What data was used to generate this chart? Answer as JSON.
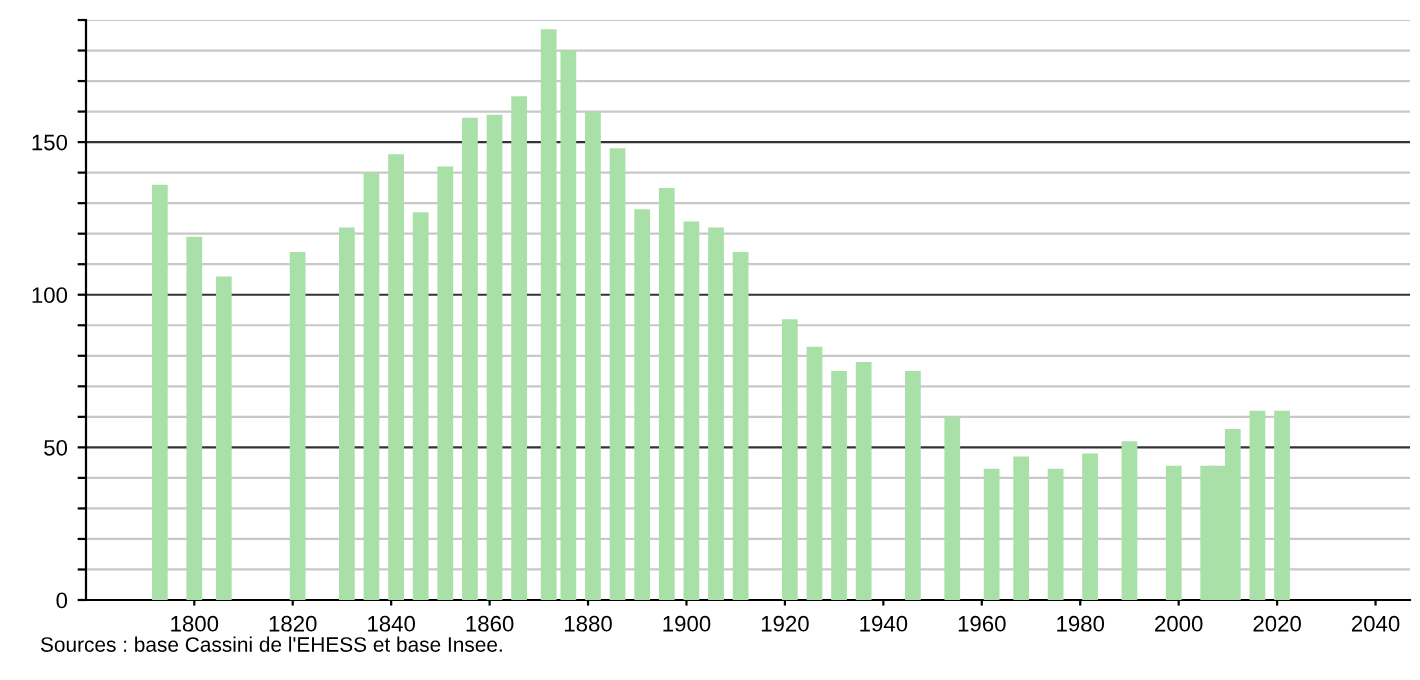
{
  "chart_data": {
    "type": "bar",
    "color": "#a8e0a8",
    "x": [
      1793,
      1800,
      1806,
      1821,
      1831,
      1836,
      1841,
      1846,
      1851,
      1856,
      1861,
      1866,
      1872,
      1876,
      1881,
      1886,
      1891,
      1896,
      1901,
      1906,
      1911,
      1921,
      1926,
      1931,
      1936,
      1946,
      1954,
      1962,
      1968,
      1975,
      1982,
      1990,
      1999,
      2006,
      2008,
      2011,
      2016,
      2021
    ],
    "values": [
      136,
      119,
      106,
      114,
      122,
      140,
      146,
      127,
      142,
      158,
      159,
      165,
      187,
      180,
      160,
      148,
      128,
      135,
      124,
      122,
      114,
      92,
      83,
      75,
      78,
      75,
      60,
      43,
      47,
      43,
      48,
      52,
      44,
      44,
      44,
      56,
      62,
      62
    ],
    "xlim": [
      1778,
      2047
    ],
    "xticks": [
      1800,
      1820,
      1840,
      1860,
      1880,
      1900,
      1920,
      1940,
      1960,
      1980,
      2000,
      2020,
      2040
    ],
    "ylim": [
      0,
      190
    ],
    "yticks": [
      0,
      {
        "value": 10,
        "label": null
      },
      {
        "value": 20,
        "label": null
      },
      {
        "value": 30,
        "label": null
      },
      {
        "value": 40,
        "label": null
      },
      50,
      {
        "value": 60,
        "label": null
      },
      {
        "value": 70,
        "label": null
      },
      {
        "value": 80,
        "label": null
      },
      {
        "value": 90,
        "label": null
      },
      100,
      {
        "value": 110,
        "label": null
      },
      {
        "value": 120,
        "label": null
      },
      {
        "value": 130,
        "label": null
      },
      {
        "value": 140,
        "label": null
      },
      150,
      {
        "value": 160,
        "label": null
      },
      {
        "value": 170,
        "label": null
      },
      {
        "value": 180,
        "label": null
      },
      {
        "value": 190,
        "label": null
      }
    ],
    "grid": "y",
    "annotations": [
      "Sources : base Cassini de l'EHESS et base Insee."
    ]
  }
}
